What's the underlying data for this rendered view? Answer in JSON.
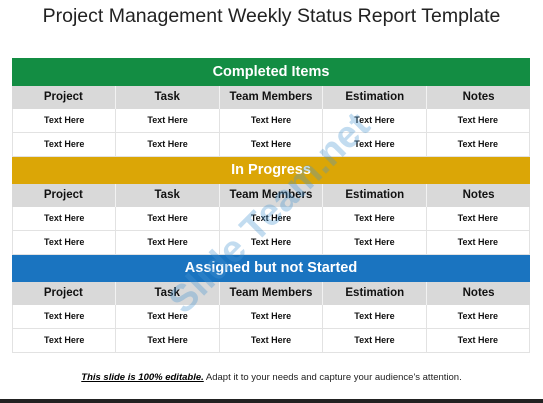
{
  "title": "Project Management Weekly Status Report Template",
  "columns": [
    "Project",
    "Task",
    "Team Members",
    "Estimation",
    "Notes"
  ],
  "sections": [
    {
      "name": "Completed Items",
      "color": "#138d43",
      "rows": [
        [
          "Text Here",
          "Text Here",
          "Text Here",
          "Text Here",
          "Text Here"
        ],
        [
          "Text Here",
          "Text Here",
          "Text Here",
          "Text Here",
          "Text Here"
        ]
      ]
    },
    {
      "name": "In Progress",
      "color": "#dba606",
      "rows": [
        [
          "Text Here",
          "Text Here",
          "Text Here",
          "Text Here",
          "Text Here"
        ],
        [
          "Text Here",
          "Text Here",
          "Text Here",
          "Text Here",
          "Text Here"
        ]
      ]
    },
    {
      "name": "Assigned but not Started",
      "color": "#1a74c0",
      "rows": [
        [
          "Text Here",
          "Text Here",
          "Text Here",
          "Text Here",
          "Text Here"
        ],
        [
          "Text Here",
          "Text Here",
          "Text Here",
          "Text Here",
          "Text Here"
        ]
      ]
    }
  ],
  "watermark": "Slide Team.net",
  "footer": {
    "emphasis": "This slide is 100% editable.",
    "text": " Adapt it to your needs and capture your audience's attention."
  }
}
